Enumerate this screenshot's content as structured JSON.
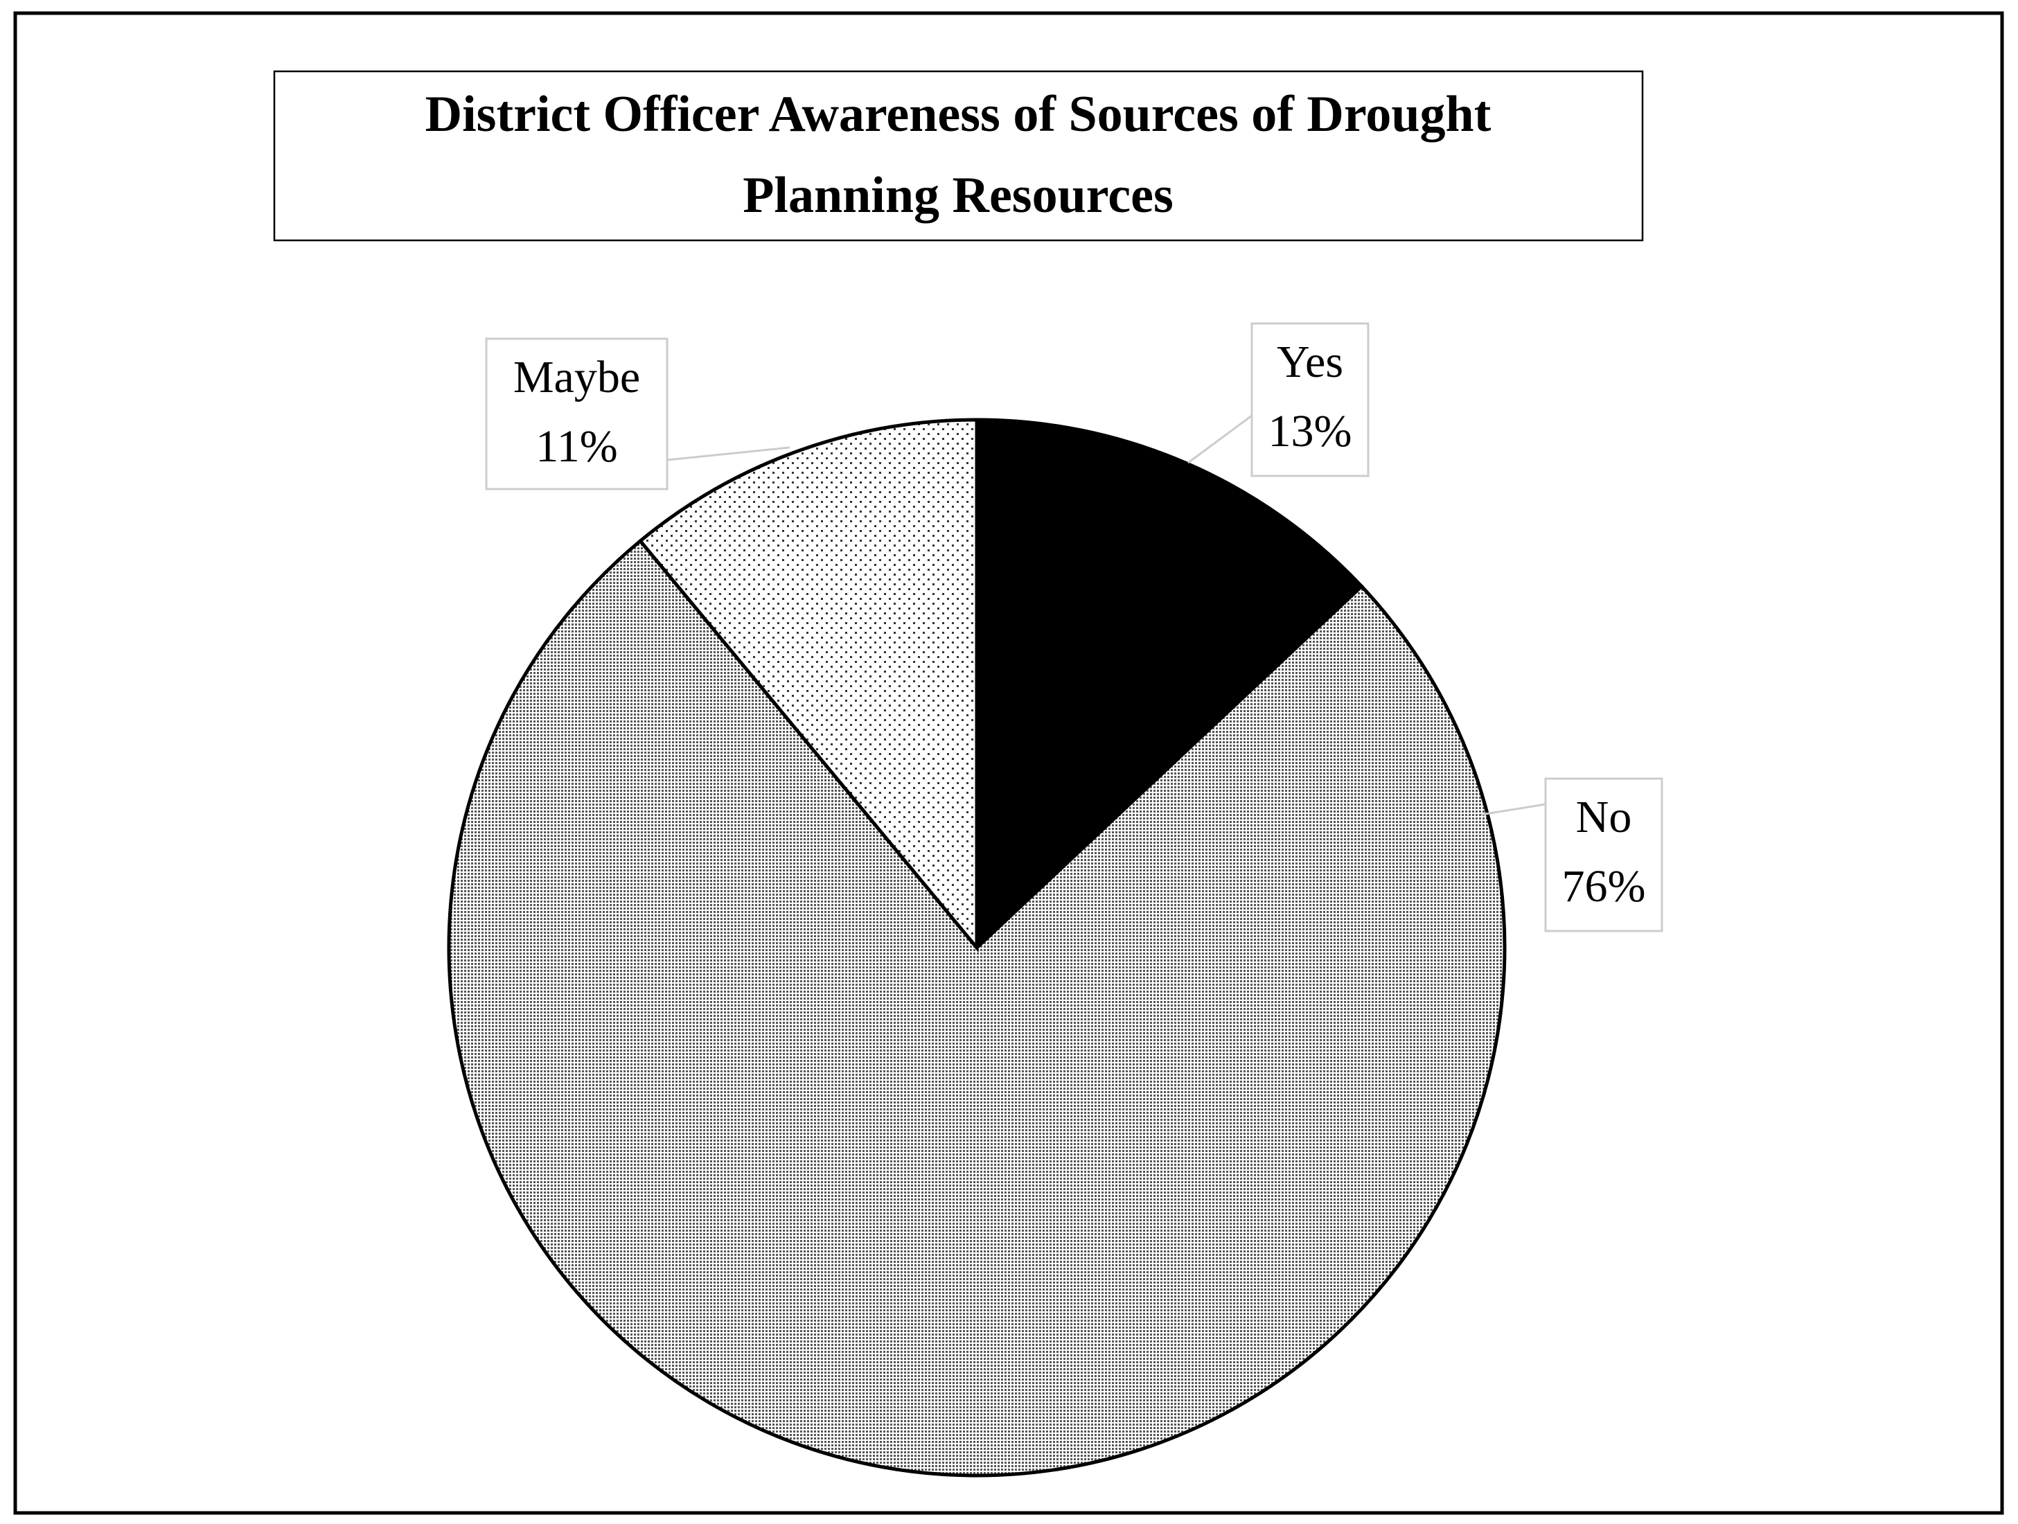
{
  "chart_data": {
    "type": "pie",
    "title": "District Officer Awareness of Sources of Drought Planning Resources",
    "categories": [
      "Yes",
      "No",
      "Maybe"
    ],
    "values": [
      13,
      76,
      11
    ],
    "value_labels": [
      "13%",
      "76%",
      "11%"
    ],
    "colors": [
      "#000000",
      "#b8b8b8",
      "#f4f4f4"
    ]
  }
}
